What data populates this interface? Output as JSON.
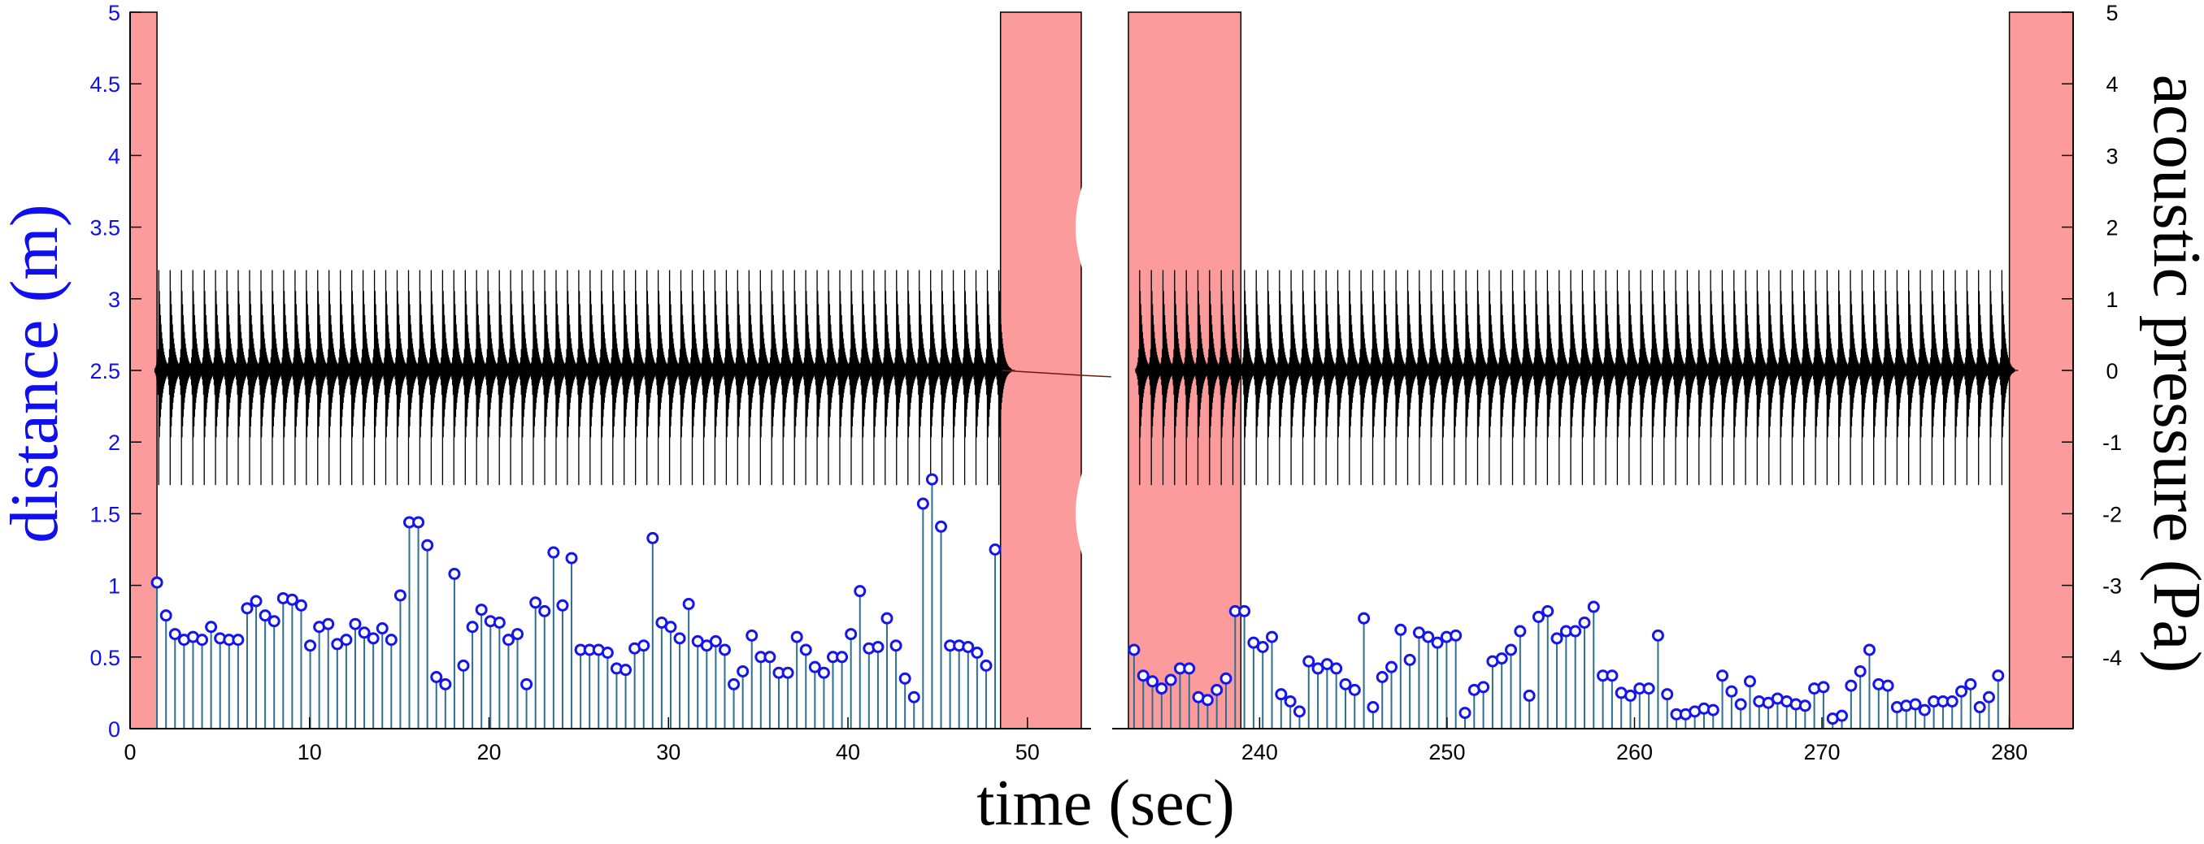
{
  "chart_data": {
    "type": "stem+line",
    "xlabel": "time (sec)",
    "ylabel_left": "distance (m)",
    "ylabel_right": "acoustic pressure (Pa)",
    "colors": {
      "left_axis": "#1010ee",
      "stem": "#2f6f8f",
      "marker": "#1515ee",
      "pressure": "#000000",
      "shaded": "#fc9b9b",
      "break_band": "#ffffff"
    },
    "left_ylim": [
      0,
      5
    ],
    "left_yticks": [
      "0",
      "0.5",
      "1",
      "1.5",
      "2",
      "2.5",
      "3",
      "3.5",
      "4",
      "4.5",
      "5"
    ],
    "right_ylim": [
      -5,
      5
    ],
    "right_yticks": [
      "-4",
      "-3",
      "-2",
      "-1",
      "0",
      "1",
      "2",
      "3",
      "4",
      "5"
    ],
    "axis_break": {
      "from": 53,
      "to": 233
    },
    "xlim": [
      0,
      283.4
    ],
    "xticks": [
      "0",
      "10",
      "20",
      "30",
      "40",
      "50",
      "240",
      "250",
      "260",
      "270",
      "280"
    ],
    "xtick_values": [
      0,
      10,
      20,
      30,
      40,
      50,
      240,
      250,
      260,
      270,
      280
    ],
    "shaded_regions": [
      [
        0,
        1.5
      ],
      [
        48.5,
        53
      ],
      [
        233,
        239.0
      ],
      [
        280,
        283.4
      ]
    ],
    "pressure_signal": {
      "series_name": "acoustic pressure",
      "pulse_amplitude_max": 1.4,
      "pulse_amplitude_min": -1.6,
      "segments": [
        {
          "start": 1.6,
          "end": 48.4,
          "pulses": 75
        },
        {
          "start": 233.6,
          "end": 279.6,
          "pulses": 75
        }
      ]
    },
    "distance_series": {
      "name": "distance",
      "segments": [
        {
          "start": 1.5,
          "end": 48.2,
          "values": [
            1.02,
            0.79,
            0.66,
            0.62,
            0.64,
            0.62,
            0.71,
            0.63,
            0.62,
            0.62,
            0.84,
            0.89,
            0.79,
            0.75,
            0.91,
            0.9,
            0.86,
            0.58,
            0.71,
            0.73,
            0.59,
            0.62,
            0.73,
            0.67,
            0.63,
            0.7,
            0.62,
            0.93,
            1.44,
            1.44,
            1.28,
            0.36,
            0.31,
            1.08,
            0.44,
            0.71,
            0.83,
            0.75,
            0.74,
            0.62,
            0.66,
            0.31,
            0.88,
            0.82,
            1.23,
            0.86,
            1.19,
            0.55,
            0.55,
            0.55,
            0.53,
            0.42,
            0.41,
            0.56,
            0.58,
            1.33,
            0.74,
            0.71,
            0.63,
            0.87,
            0.61,
            0.58,
            0.61,
            0.55,
            0.31,
            0.4,
            0.65,
            0.5,
            0.5,
            0.39,
            0.39,
            0.64,
            0.55,
            0.43,
            0.39,
            0.5,
            0.5,
            0.66,
            0.96,
            0.56,
            0.57,
            0.77,
            0.58,
            0.35,
            0.22,
            1.57,
            1.74,
            1.41,
            0.58,
            0.58,
            0.57,
            0.53,
            0.44,
            1.25
          ]
        },
        {
          "start": 233.3,
          "end": 279.4,
          "values": [
            0.55,
            0.37,
            0.33,
            0.28,
            0.34,
            0.42,
            0.42,
            0.22,
            0.2,
            0.27,
            0.35,
            0.82,
            0.82,
            0.6,
            0.57,
            0.64,
            0.24,
            0.19,
            0.12,
            0.47,
            0.42,
            0.45,
            0.42,
            0.31,
            0.27,
            0.77,
            0.15,
            0.36,
            0.43,
            0.69,
            0.48,
            0.67,
            0.64,
            0.6,
            0.64,
            0.65,
            0.11,
            0.27,
            0.29,
            0.47,
            0.49,
            0.55,
            0.68,
            0.23,
            0.78,
            0.82,
            0.63,
            0.68,
            0.68,
            0.74,
            0.85,
            0.37,
            0.37,
            0.25,
            0.23,
            0.28,
            0.28,
            0.65,
            0.24,
            0.1,
            0.1,
            0.12,
            0.14,
            0.13,
            0.37,
            0.26,
            0.17,
            0.33,
            0.19,
            0.18,
            0.21,
            0.19,
            0.17,
            0.16,
            0.28,
            0.29,
            0.07,
            0.09,
            0.3,
            0.4,
            0.55,
            0.31,
            0.3,
            0.15,
            0.16,
            0.17,
            0.13,
            0.19,
            0.19,
            0.19,
            0.26,
            0.31,
            0.15,
            0.22,
            0.37
          ]
        }
      ]
    }
  }
}
